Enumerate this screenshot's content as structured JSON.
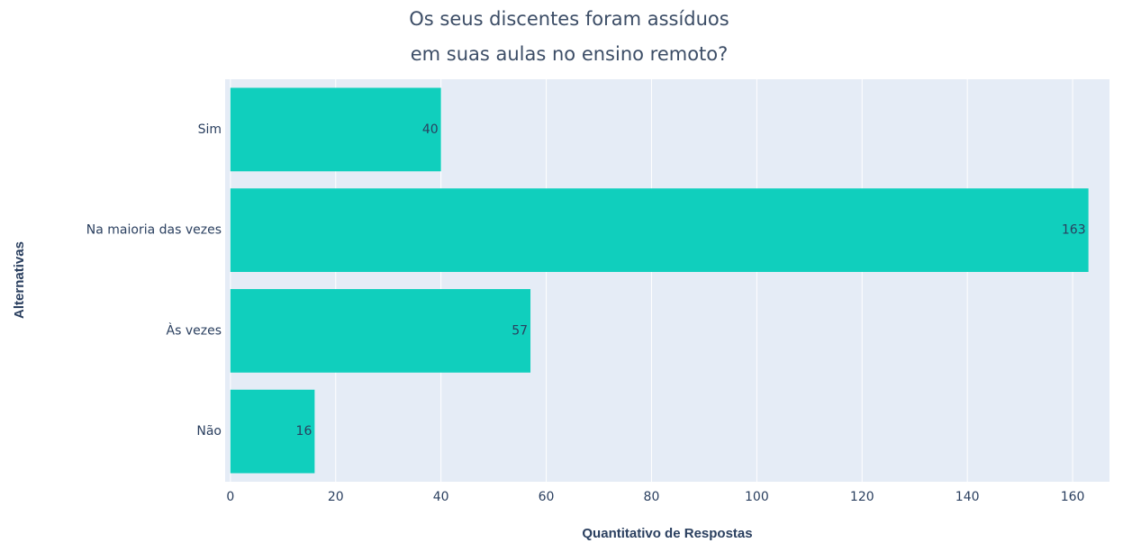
{
  "chart_data": {
    "type": "hbar",
    "title": [
      "Os seus discentes foram assíduos",
      "em suas aulas no ensino remoto?"
    ],
    "x_label": "Quantitativo de Respostas",
    "y_label": "Alternativas",
    "categories": [
      "Sim",
      "Na maioria das vezes",
      "Às vezes",
      "Não"
    ],
    "values": [
      40,
      163,
      57,
      16
    ],
    "color": "#10cfbd",
    "xlim": [
      -1,
      167
    ],
    "xticks": [
      0,
      20,
      40,
      60,
      80,
      100,
      120,
      140,
      160
    ],
    "grid": true
  }
}
